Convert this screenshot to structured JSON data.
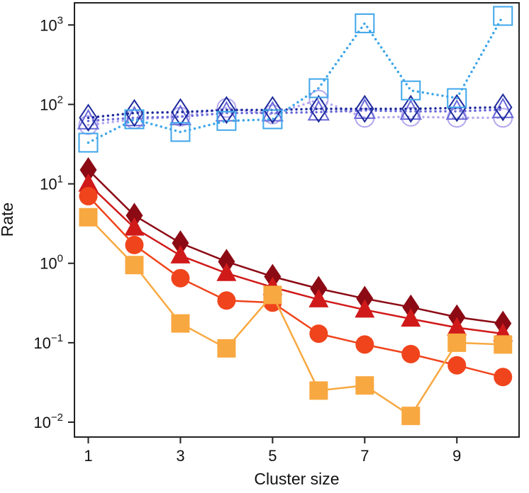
{
  "chart_data": {
    "type": "line",
    "title": "",
    "xlabel": "Cluster size",
    "ylabel": "Rate",
    "x": [
      1,
      2,
      3,
      4,
      5,
      6,
      7,
      8,
      9,
      10
    ],
    "x_ticks": [
      1,
      3,
      5,
      7,
      9
    ],
    "x_tick_labels": [
      "1",
      "3",
      "5",
      "7",
      "9"
    ],
    "xlim": [
      0.7,
      10.35
    ],
    "y_scale": "log",
    "ylim": [
      0.0065,
      1900
    ],
    "y_ticks": [
      0.01,
      0.1,
      1,
      10,
      100,
      1000
    ],
    "y_tick_labels": [
      {
        "base": "10",
        "exp": "−2"
      },
      {
        "base": "10",
        "exp": "−1"
      },
      {
        "base": "10",
        "exp": "0"
      },
      {
        "base": "10",
        "exp": "1"
      },
      {
        "base": "10",
        "exp": "2"
      },
      {
        "base": "10",
        "exp": "3"
      }
    ],
    "grid": false,
    "series": [
      {
        "name": "blue-circles",
        "marker": "circle",
        "filled": false,
        "line": "dotted",
        "color": "#b4a8ee",
        "values": [
          55,
          65,
          70,
          90,
          75,
          115,
          68,
          70,
          68,
          68
        ]
      },
      {
        "name": "blue-triangles",
        "marker": "triangle",
        "filled": false,
        "line": "dotted",
        "color": "#6a6ad8",
        "values": [
          62,
          68,
          70,
          78,
          78,
          80,
          84,
          82,
          82,
          86
        ]
      },
      {
        "name": "navy-diamonds",
        "marker": "diamond",
        "filled": false,
        "line": "dotted",
        "color": "#1c2a9c",
        "values": [
          68,
          78,
          80,
          85,
          85,
          88,
          88,
          88,
          90,
          92
        ]
      },
      {
        "name": "cyan-squares",
        "marker": "square",
        "filled": false,
        "line": "dotted",
        "color": "#3ea6ea",
        "values": [
          33,
          65,
          45,
          62,
          65,
          160,
          1050,
          150,
          120,
          1300
        ]
      },
      {
        "name": "dark-red-diamonds",
        "marker": "diamond",
        "filled": true,
        "line": "solid",
        "color": "#8b0a14",
        "values": [
          15,
          4,
          1.8,
          1.05,
          0.68,
          0.48,
          0.36,
          0.28,
          0.21,
          0.175
        ]
      },
      {
        "name": "red-triangles",
        "marker": "triangle",
        "filled": true,
        "line": "solid",
        "color": "#d01a1a",
        "values": [
          10,
          2.8,
          1.25,
          0.75,
          0.5,
          0.35,
          0.26,
          0.2,
          0.155,
          0.13
        ]
      },
      {
        "name": "orange-red-circles",
        "marker": "circle",
        "filled": true,
        "line": "solid",
        "color": "#f0441c",
        "values": [
          7,
          1.7,
          0.65,
          0.34,
          0.32,
          0.13,
          0.095,
          0.072,
          0.052,
          0.037
        ]
      },
      {
        "name": "orange-squares",
        "marker": "square",
        "filled": true,
        "line": "solid",
        "color": "#f8a840",
        "values": [
          3.8,
          0.95,
          0.175,
          0.085,
          0.4,
          0.025,
          0.029,
          0.012,
          0.1,
          0.095
        ]
      }
    ]
  }
}
